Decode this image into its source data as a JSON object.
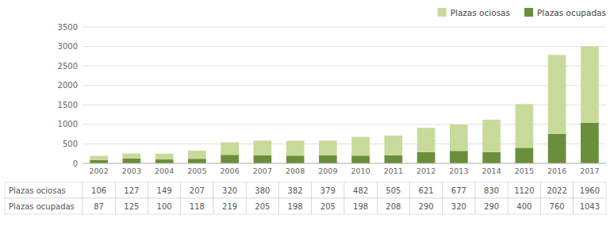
{
  "chart_data": {
    "type": "bar",
    "stacked": true,
    "grid": true,
    "legend": "upper right",
    "categories": [
      2002,
      2003,
      2004,
      2005,
      2006,
      2007,
      2008,
      2009,
      2010,
      2011,
      2012,
      2013,
      2014,
      2015,
      2016,
      2017
    ],
    "series": [
      {
        "name": "Plazas ocupadas",
        "color": "#6a8f3a",
        "values": [
          87,
          125,
          100,
          118,
          219,
          205,
          198,
          205,
          198,
          208,
          290,
          320,
          290,
          400,
          760,
          1043
        ]
      },
      {
        "name": "Plazas ociosas",
        "color": "#c8da9a",
        "values": [
          106,
          127,
          149,
          207,
          320,
          380,
          382,
          379,
          482,
          505,
          621,
          677,
          830,
          1120,
          2022,
          1960
        ]
      }
    ],
    "ylim": [
      0,
      3500
    ],
    "yticks": [
      0,
      500,
      1000,
      1500,
      2000,
      2500,
      3000,
      3500
    ]
  }
}
